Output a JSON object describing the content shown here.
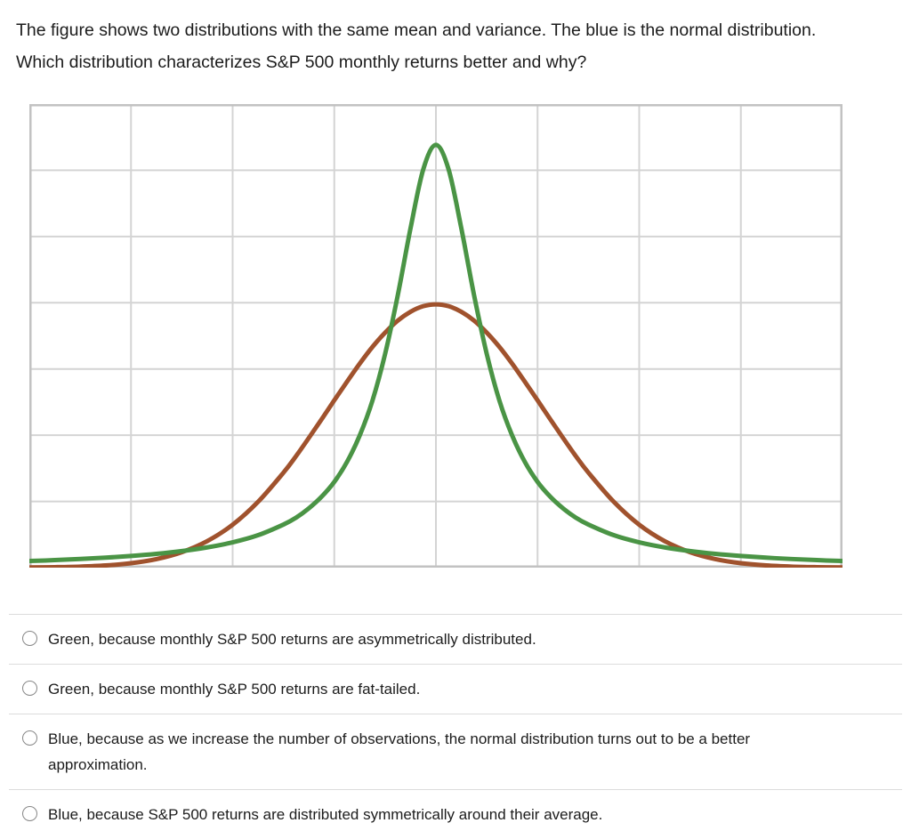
{
  "question": {
    "text": "The figure shows two distributions with the same mean and variance. The blue is the normal distribution. Which distribution characterizes S&P 500 monthly returns better and why?"
  },
  "options": [
    {
      "label": "Green, because monthly S&P 500 returns are asymmetrically distributed.",
      "selected": false
    },
    {
      "label": "Green, because monthly S&P 500 returns are fat-tailed.",
      "selected": false
    },
    {
      "label": "Blue, because as we increase the number of observations, the normal distribution turns out to be a better approximation.",
      "selected": false
    },
    {
      "label": "Blue, because S&P 500 returns are distributed symmetrically around their average.",
      "selected": false
    }
  ],
  "chart_data": {
    "type": "line",
    "title": "",
    "xlabel": "",
    "ylabel": "",
    "x_range": [
      -4,
      4
    ],
    "y_range": [
      0,
      1
    ],
    "grid": {
      "visible": true,
      "columns": 8,
      "rows": 7,
      "line_color": "#d4d4d4",
      "border_color": "#c2c2c2"
    },
    "legend": "none",
    "axis_tick_labels_visible": false,
    "series": [
      {
        "name": "normal-distribution",
        "description": "wider bell curve (referred to as the blue/normal distribution in the question)",
        "color": "#a0522d",
        "stroke_width": 5,
        "points": [
          [
            -4,
            0.0004
          ],
          [
            -3.75,
            0.001
          ],
          [
            -3.5,
            0.0022
          ],
          [
            -3.25,
            0.0047
          ],
          [
            -3,
            0.0096
          ],
          [
            -2.75,
            0.0184
          ],
          [
            -2.5,
            0.0334
          ],
          [
            -2.25,
            0.0572
          ],
          [
            -2,
            0.0926
          ],
          [
            -1.75,
            0.142
          ],
          [
            -1.5,
            0.205
          ],
          [
            -1.375,
            0.241
          ],
          [
            -1.25,
            0.28
          ],
          [
            -1.125,
            0.32
          ],
          [
            -1,
            0.361
          ],
          [
            -0.875,
            0.401
          ],
          [
            -0.75,
            0.44
          ],
          [
            -0.625,
            0.476
          ],
          [
            -0.5,
            0.507
          ],
          [
            -0.375,
            0.533
          ],
          [
            -0.25,
            0.552
          ],
          [
            -0.125,
            0.564
          ],
          [
            0,
            0.568
          ],
          [
            0.125,
            0.564
          ],
          [
            0.25,
            0.552
          ],
          [
            0.375,
            0.533
          ],
          [
            0.5,
            0.507
          ],
          [
            0.625,
            0.476
          ],
          [
            0.75,
            0.44
          ],
          [
            0.875,
            0.401
          ],
          [
            1,
            0.361
          ],
          [
            1.125,
            0.32
          ],
          [
            1.25,
            0.28
          ],
          [
            1.375,
            0.241
          ],
          [
            1.5,
            0.205
          ],
          [
            1.75,
            0.142
          ],
          [
            2,
            0.0926
          ],
          [
            2.25,
            0.0572
          ],
          [
            2.5,
            0.0334
          ],
          [
            2.75,
            0.0184
          ],
          [
            3,
            0.0096
          ],
          [
            3.25,
            0.0047
          ],
          [
            3.5,
            0.0022
          ],
          [
            3.75,
            0.001
          ],
          [
            4,
            0.0004
          ]
        ]
      },
      {
        "name": "fat-tailed-distribution",
        "description": "tall narrow green curve with fat tails, same mean and variance",
        "color": "#4a9445",
        "stroke_width": 5,
        "points": [
          [
            -4,
            0.0143
          ],
          [
            -3.75,
            0.0162
          ],
          [
            -3.5,
            0.0186
          ],
          [
            -3.25,
            0.0215
          ],
          [
            -3,
            0.0251
          ],
          [
            -2.75,
            0.0297
          ],
          [
            -2.5,
            0.0357
          ],
          [
            -2.25,
            0.0437
          ],
          [
            -2,
            0.0546
          ],
          [
            -1.75,
            0.07
          ],
          [
            -1.5,
            0.093
          ],
          [
            -1.375,
            0.108
          ],
          [
            -1.25,
            0.128
          ],
          [
            -1.125,
            0.153
          ],
          [
            -1,
            0.185
          ],
          [
            -0.875,
            0.228
          ],
          [
            -0.75,
            0.285
          ],
          [
            -0.625,
            0.36
          ],
          [
            -0.5,
            0.461
          ],
          [
            -0.375,
            0.588
          ],
          [
            -0.25,
            0.732
          ],
          [
            -0.125,
            0.859
          ],
          [
            0,
            0.912
          ],
          [
            0.125,
            0.859
          ],
          [
            0.25,
            0.732
          ],
          [
            0.375,
            0.588
          ],
          [
            0.5,
            0.461
          ],
          [
            0.625,
            0.36
          ],
          [
            0.75,
            0.285
          ],
          [
            0.875,
            0.228
          ],
          [
            1,
            0.185
          ],
          [
            1.125,
            0.153
          ],
          [
            1.25,
            0.128
          ],
          [
            1.375,
            0.108
          ],
          [
            1.5,
            0.093
          ],
          [
            1.75,
            0.07
          ],
          [
            2,
            0.0546
          ],
          [
            2.25,
            0.0437
          ],
          [
            2.5,
            0.0357
          ],
          [
            2.75,
            0.0297
          ],
          [
            3,
            0.0251
          ],
          [
            3.25,
            0.0215
          ],
          [
            3.5,
            0.0186
          ],
          [
            3.75,
            0.0162
          ],
          [
            4,
            0.0143
          ]
        ]
      }
    ]
  }
}
